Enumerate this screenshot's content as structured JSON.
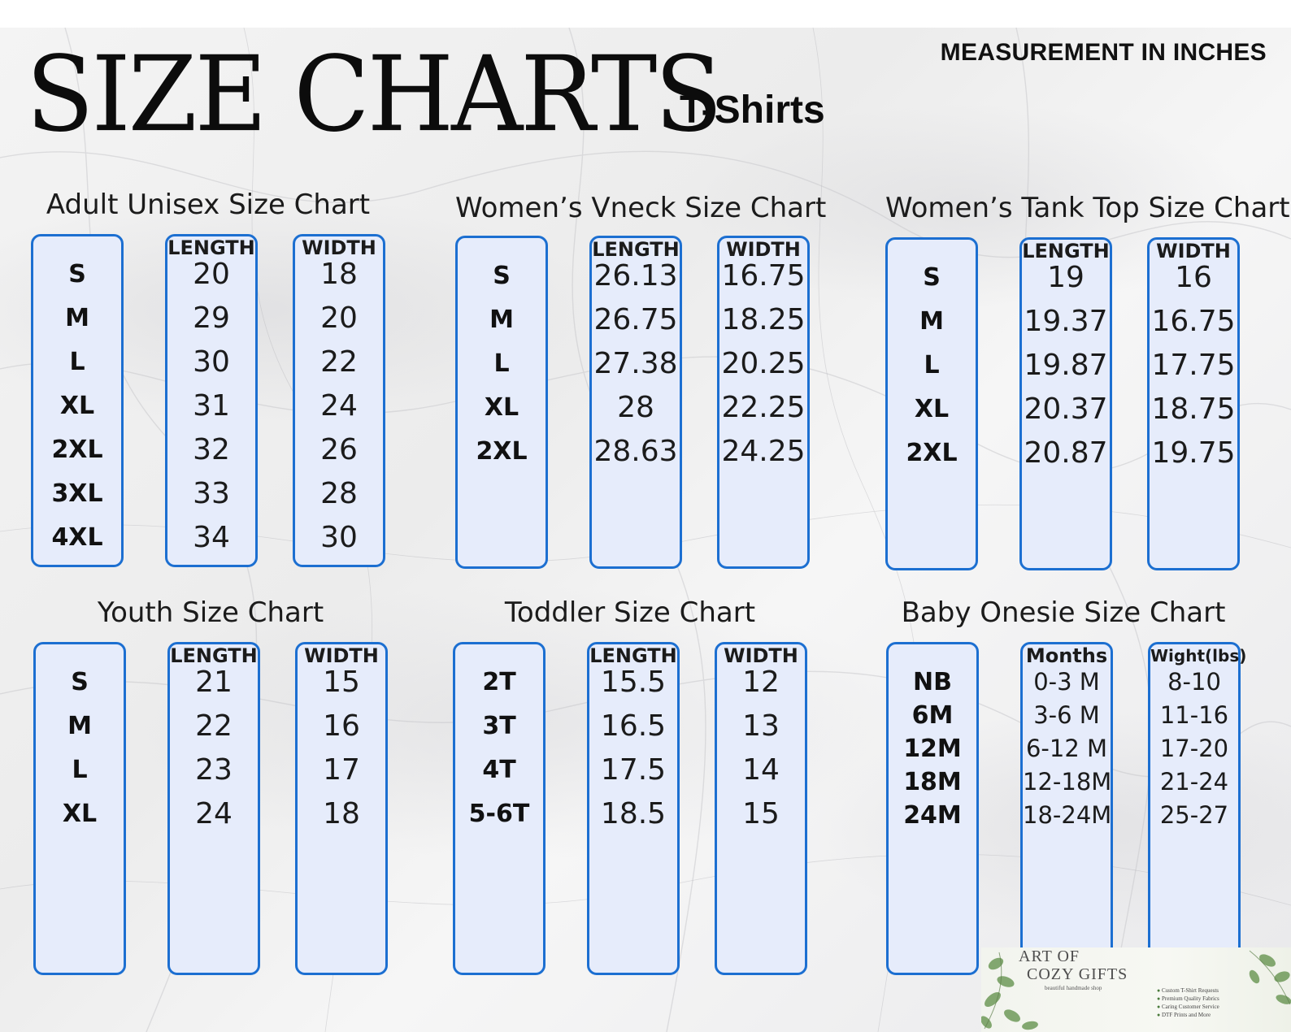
{
  "header": {
    "title": "SIZE CHARTS",
    "subtitle": "T-Shirts",
    "measurement_note": "MEASUREMENT IN INCHES"
  },
  "colors": {
    "column_border": "#1c6fd1",
    "column_fill": "#e6ecfb",
    "text": "#111111"
  },
  "charts": [
    {
      "title": "Adult Unisex Size Chart",
      "columns": [
        "",
        "LENGTH",
        "WIDTH"
      ],
      "sizes": [
        "S",
        "M",
        "L",
        "XL",
        "2XL",
        "3XL",
        "4XL"
      ],
      "length": [
        "20",
        "29",
        "30",
        "31",
        "32",
        "33",
        "34"
      ],
      "width": [
        "18",
        "20",
        "22",
        "24",
        "26",
        "28",
        "30"
      ]
    },
    {
      "title": "Women’s Vneck Size Chart",
      "columns": [
        "",
        "LENGTH",
        "WIDTH"
      ],
      "sizes": [
        "S",
        "M",
        "L",
        "XL",
        "2XL"
      ],
      "length": [
        "26.13",
        "26.75",
        "27.38",
        "28",
        "28.63"
      ],
      "width": [
        "16.75",
        "18.25",
        "20.25",
        "22.25",
        "24.25"
      ]
    },
    {
      "title": "Women’s Tank Top Size Chart",
      "columns": [
        "",
        "LENGTH",
        "WIDTH"
      ],
      "sizes": [
        "S",
        "M",
        "L",
        "XL",
        "2XL"
      ],
      "length": [
        "19",
        "19.37",
        "19.87",
        "20.37",
        "20.87"
      ],
      "width": [
        "16",
        "16.75",
        "17.75",
        "18.75",
        "19.75"
      ]
    },
    {
      "title": "Youth Size Chart",
      "columns": [
        "",
        "LENGTH",
        "WIDTH"
      ],
      "sizes": [
        "S",
        "M",
        "L",
        "XL"
      ],
      "length": [
        "21",
        "22",
        "23",
        "24"
      ],
      "width": [
        "15",
        "16",
        "17",
        "18"
      ]
    },
    {
      "title": "Toddler Size Chart",
      "columns": [
        "",
        "LENGTH",
        "WIDTH"
      ],
      "sizes": [
        "2T",
        "3T",
        "4T",
        "5-6T"
      ],
      "length": [
        "15.5",
        "16.5",
        "17.5",
        "18.5"
      ],
      "width": [
        "12",
        "13",
        "14",
        "15"
      ]
    },
    {
      "title": "Baby Onesie Size Chart",
      "columns": [
        "",
        "Months",
        "Wight(lbs)"
      ],
      "sizes": [
        "NB",
        "6M",
        "12M",
        "18M",
        "24M"
      ],
      "length": [
        "0-3 M",
        "3-6 M",
        "6-12 M",
        "12-18M",
        "18-24M"
      ],
      "width": [
        "8-10",
        "11-16",
        "17-20",
        "21-24",
        "25-27"
      ]
    }
  ],
  "logo": {
    "line1": "ART OF",
    "line2": "COZY GIFTS",
    "tagline": "beautiful handmade shop",
    "bullets": [
      "Custom T-Shirt Requests",
      "Premium Quality Fabrics",
      "Caring Customer Service",
      "DTF Prints and More"
    ]
  }
}
